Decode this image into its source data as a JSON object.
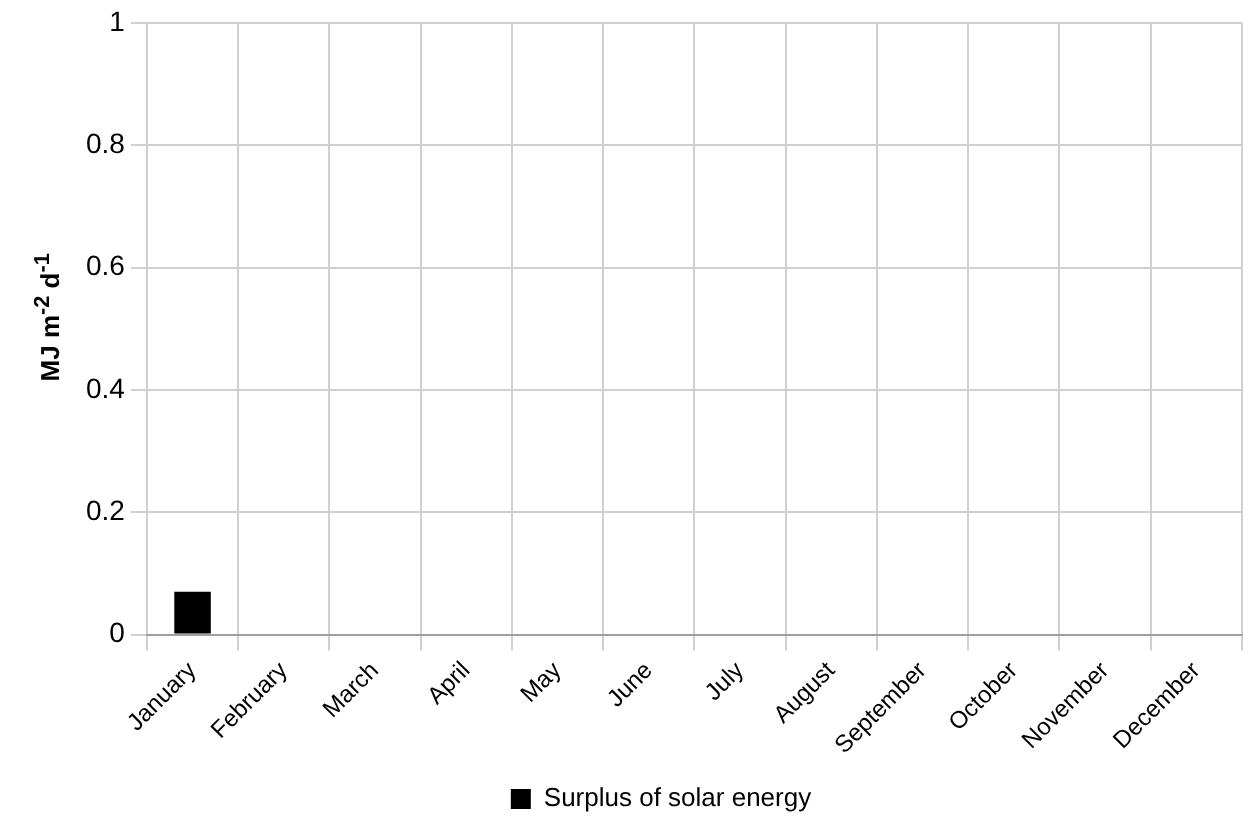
{
  "chart_data": {
    "type": "bar",
    "ylabel": "MJ m$^{-2}$ d$^{-1}$",
    "categories": [
      "January",
      "February",
      "March",
      "April",
      "May",
      "June",
      "July",
      "August",
      "September",
      "October",
      "November",
      "December"
    ],
    "series": [
      {
        "name": "Surplus of solar energy",
        "color": "#000000",
        "values": [
          0.07,
          0,
          0,
          0,
          0,
          0,
          0,
          0,
          0,
          0,
          0,
          0
        ]
      }
    ],
    "ylim": [
      0,
      1
    ],
    "yticks": [
      0,
      0.2,
      0.4,
      0.6,
      0.8,
      1
    ],
    "grid": true,
    "legend": "bottom"
  }
}
